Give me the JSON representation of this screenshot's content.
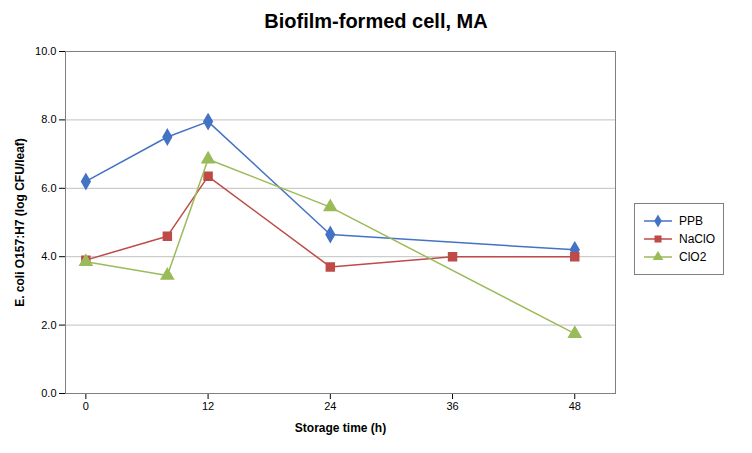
{
  "chart_data": {
    "type": "line",
    "title": "Biofilm-formed cell, MA",
    "xlabel": "Storage time (h)",
    "ylabel": "E. coli O157:H7 (log CFU/leaf)",
    "x": [
      0,
      8,
      12,
      24,
      36,
      48
    ],
    "series": [
      {
        "name": "PPB",
        "color": "#4472C4",
        "marker": "diamond",
        "values": [
          6.2,
          7.5,
          7.95,
          4.65,
          null,
          4.2
        ]
      },
      {
        "name": "NaClO",
        "color": "#BE4B48",
        "marker": "square",
        "values": [
          3.9,
          4.6,
          6.35,
          3.7,
          4.0,
          4.0
        ]
      },
      {
        "name": "ClO2",
        "color": "#9BBB59",
        "marker": "triangle",
        "values": [
          3.85,
          3.45,
          6.85,
          5.45,
          null,
          1.75
        ]
      }
    ],
    "xlim": [
      -2,
      52
    ],
    "xticks": [
      0,
      12,
      24,
      36,
      48
    ],
    "ylim": [
      0.0,
      10.0
    ],
    "yticks": [
      {
        "value": 0,
        "label": "0.0"
      },
      {
        "value": 2,
        "label": "2.0"
      },
      {
        "value": 4,
        "label": "4.0"
      },
      {
        "value": 6,
        "label": "6.0"
      },
      {
        "value": 8,
        "label": "8.0"
      },
      {
        "value": 10,
        "label": "10.0"
      }
    ],
    "grid": true,
    "legend": "right"
  }
}
